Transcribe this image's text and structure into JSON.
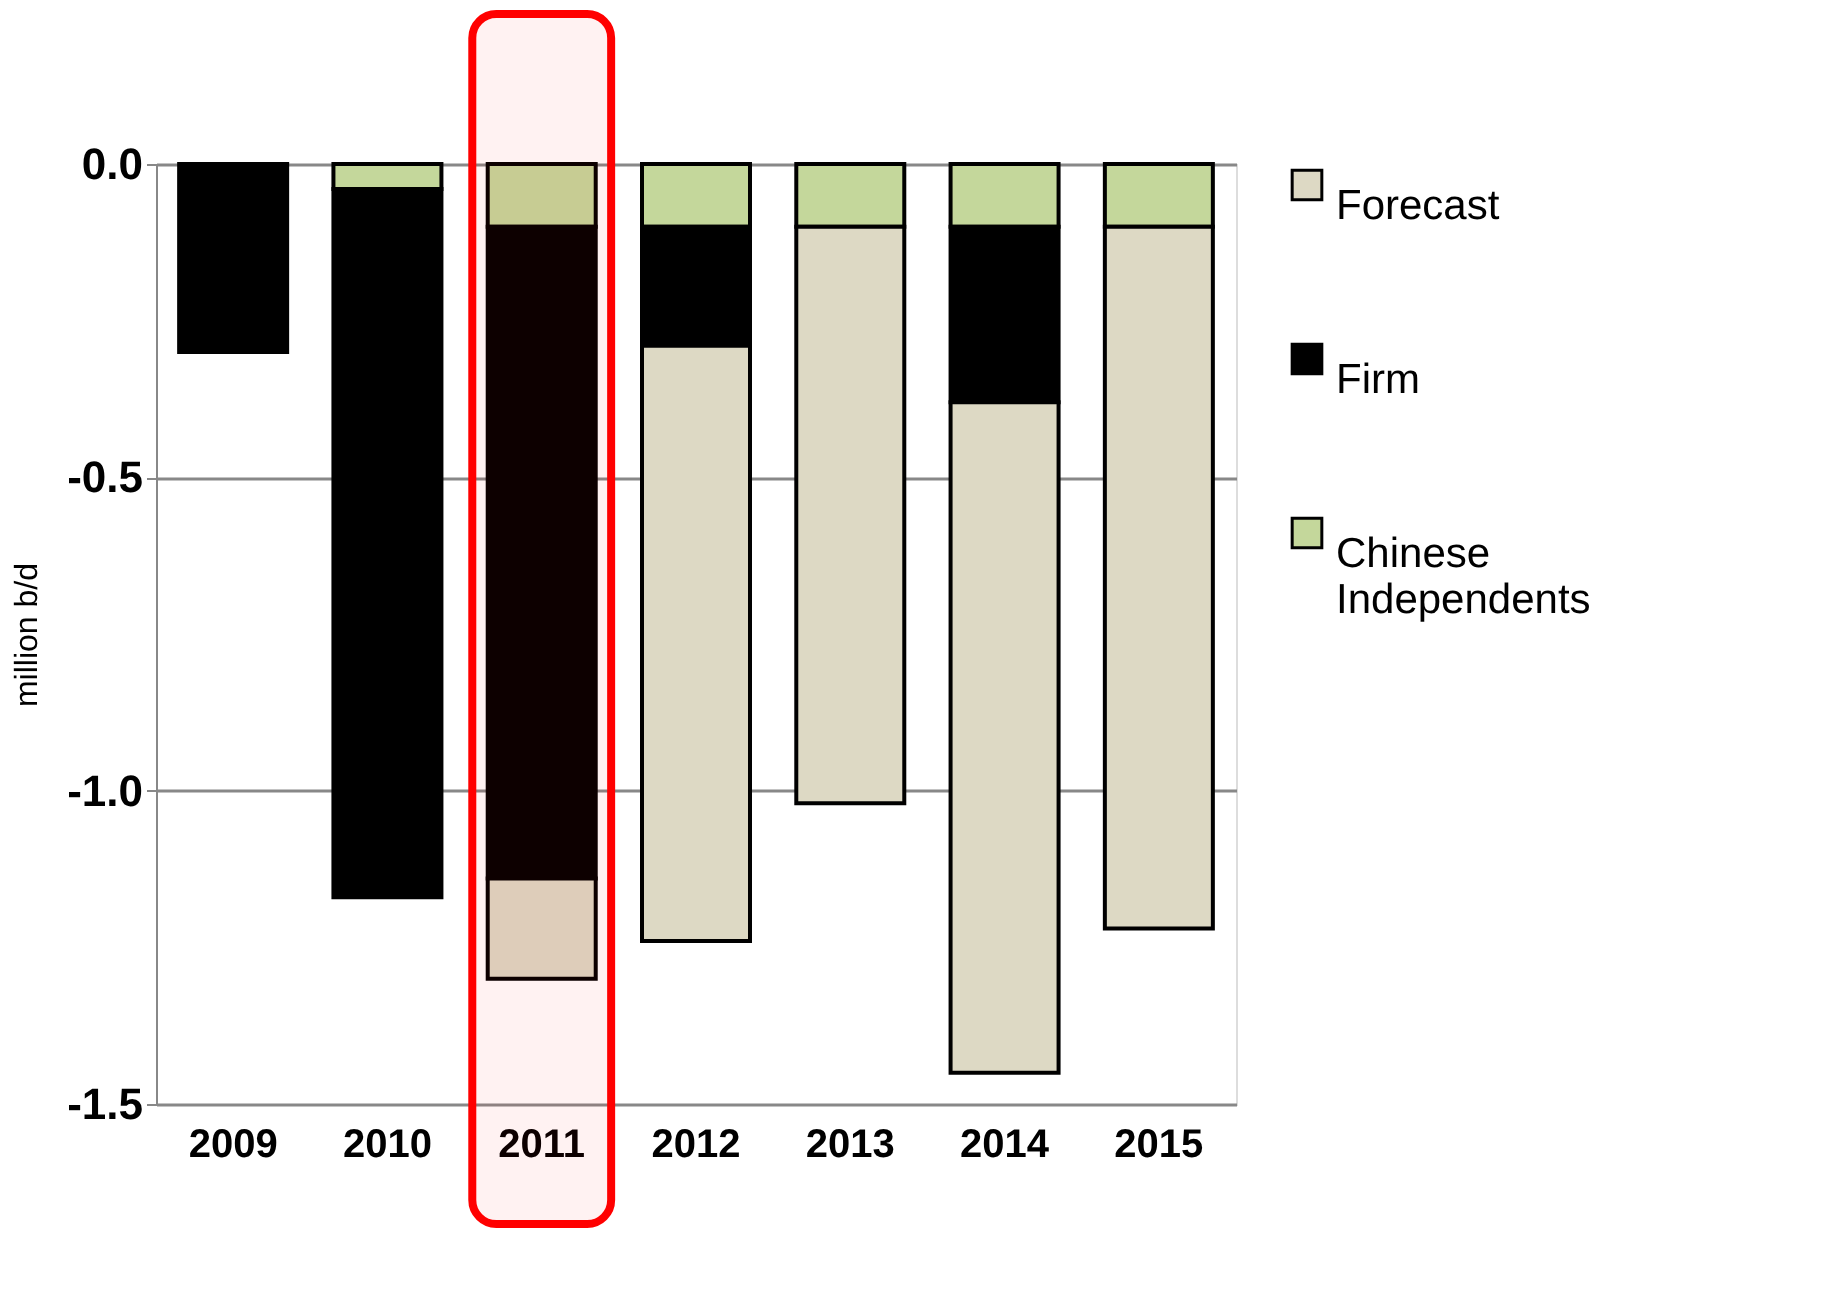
{
  "chart_data": {
    "type": "bar",
    "stacked": true,
    "ylabel": "million b/d",
    "categories": [
      "2009",
      "2010",
      "2011",
      "2012",
      "2013",
      "2014",
      "2015"
    ],
    "series": [
      {
        "name": "Chinese Independents",
        "color": "#c4d79b",
        "values": [
          0,
          -0.04,
          -0.1,
          -0.1,
          -0.1,
          -0.1,
          -0.1
        ]
      },
      {
        "name": "Firm",
        "color": "#000000",
        "values": [
          -0.3,
          -1.13,
          -1.04,
          -0.19,
          0,
          -0.28,
          0
        ]
      },
      {
        "name": "Forecast",
        "color": "#ddd9c4",
        "values": [
          0,
          0,
          -0.16,
          -0.95,
          -0.92,
          -1.07,
          -1.12
        ]
      }
    ],
    "ylim": [
      -1.5,
      0
    ],
    "yticks": [
      {
        "value": 0,
        "label": "0.0"
      },
      {
        "value": -0.5,
        "label": "-0.5"
      },
      {
        "value": -1,
        "label": "-1.0"
      },
      {
        "value": -1.5,
        "label": "-1.5"
      }
    ],
    "grid": "y",
    "legend": "right",
    "bands": [
      {
        "axis": "x",
        "from": "2011",
        "to": "2011",
        "color": "#ff0000"
      }
    ]
  }
}
